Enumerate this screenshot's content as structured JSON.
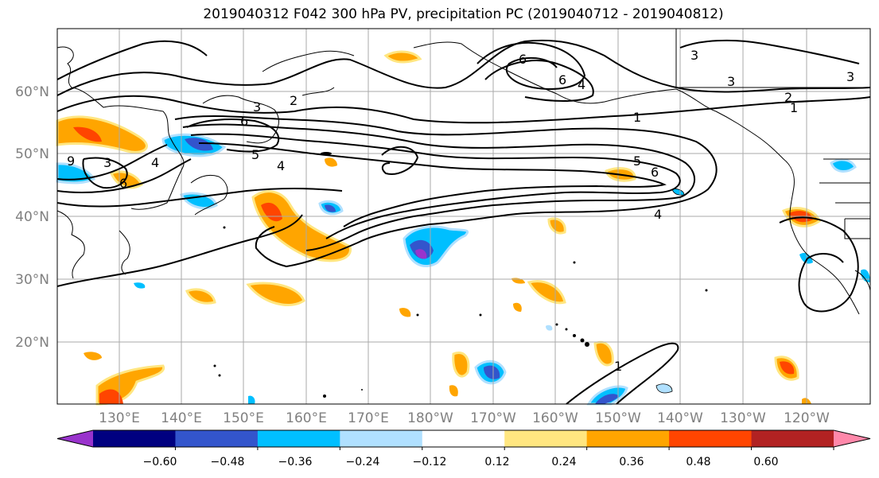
{
  "title": "2019040312 F042 300 hPa PV, precipitation PC (2019040712 - 2019040812)",
  "lon_labels": [
    "130°E",
    "140°E",
    "150°E",
    "160°E",
    "170°E",
    "180°W",
    "170°W",
    "160°W",
    "150°W",
    "140°W",
    "130°W",
    "120°W"
  ],
  "lat_labels": [
    "60°N",
    "50°N",
    "40°N",
    "30°N",
    "20°N"
  ],
  "colorbar": {
    "colors": [
      "#9933cc",
      "#000080",
      "#3355cc",
      "#00bfff",
      "#b0e0ff",
      "#ffffff",
      "#ffe680",
      "#ffa500",
      "#ff4500",
      "#b22222",
      "#ff88aa"
    ],
    "tick_labels": [
      "−0.60",
      "−0.48",
      "−0.36",
      "−0.24",
      "−0.12",
      "0.12",
      "0.24",
      "0.36",
      "0.48",
      "0.60"
    ]
  },
  "contour_labels": [
    "3",
    "2",
    "3",
    "3",
    "2",
    "1",
    "6",
    "4",
    "3",
    "6",
    "1",
    "5",
    "6",
    "4",
    "5",
    "4",
    "6",
    "4",
    "6",
    "9",
    "3",
    "1"
  ],
  "colors": {
    "positive": "#ffa500",
    "strong_positive": "#ff4500",
    "negative": "#3355cc",
    "weak_negative": "#00bfff"
  }
}
